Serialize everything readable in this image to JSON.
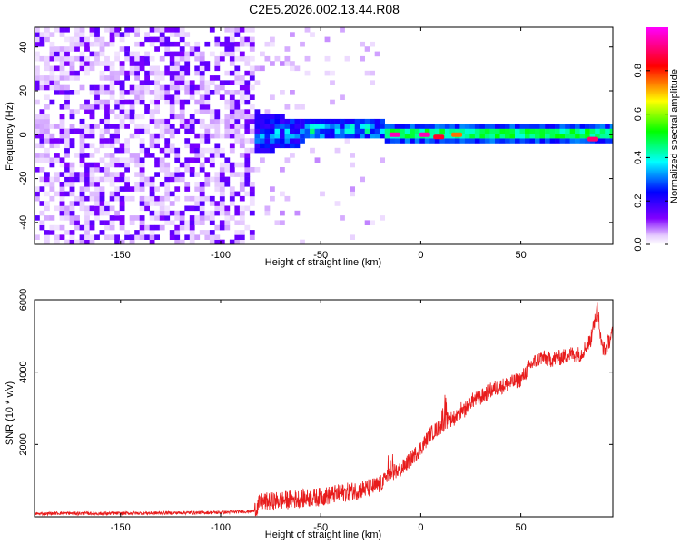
{
  "title": "C2E5.2026.002.13.44.R08",
  "colors": {
    "snr_line": "#e81c1c",
    "background": "#ffffff",
    "axis": "#000000"
  },
  "chart_data": [
    {
      "type": "heatmap",
      "name": "spectrogram",
      "xlabel": "Height of straight line (km)",
      "ylabel": "Frequency (Hz)",
      "xlim": [
        -193,
        96
      ],
      "ylim": [
        -50,
        49
      ],
      "xticks": [
        -150,
        -100,
        -50,
        0,
        50
      ],
      "yticks": [
        -40,
        -20,
        0,
        20,
        40
      ],
      "grid": false,
      "colorbar": {
        "label": "Normalized spectral amplitude",
        "range": [
          0.0,
          1.0
        ],
        "ticks": [
          0.0,
          0.2,
          0.4,
          0.6,
          0.8
        ],
        "colormap": [
          "#ffffff",
          "#e6ccff",
          "#8000ff",
          "#0000ff",
          "#00ffff",
          "#00ff00",
          "#ffff00",
          "#ff0000",
          "#ff00ff"
        ]
      },
      "regions": [
        {
          "x_range": [
            -193,
            -85
          ],
          "freq_range": [
            -50,
            49
          ],
          "description": "broadband noise",
          "amplitude": 0.1
        },
        {
          "x_range": [
            -85,
            -60
          ],
          "freq_range": [
            -10,
            10
          ],
          "center_hz": 0,
          "amplitude": 0.3
        },
        {
          "x_range": [
            -60,
            -20
          ],
          "freq_range": [
            -5,
            5
          ],
          "center_hz": 1,
          "amplitude": 0.45
        },
        {
          "x_range": [
            -20,
            96
          ],
          "freq_range": [
            -2,
            2
          ],
          "center_hz": 0,
          "amplitude": 0.5
        }
      ],
      "peaks": [
        {
          "x": -13,
          "freq": 0,
          "amplitude": 0.95
        },
        {
          "x": 2,
          "freq": 0,
          "amplitude": 0.95
        },
        {
          "x": 9,
          "freq": -1,
          "amplitude": 0.85
        },
        {
          "x": 18,
          "freq": 0,
          "amplitude": 0.75
        },
        {
          "x": 86,
          "freq": -2,
          "amplitude": 0.9
        }
      ]
    },
    {
      "type": "line",
      "name": "snr",
      "xlabel": "Height of straight line (km)",
      "ylabel": "SNR (10 * v/v)",
      "xlim": [
        -193,
        96
      ],
      "ylim": [
        0,
        6000
      ],
      "xticks": [
        -150,
        -100,
        -50,
        0,
        50
      ],
      "yticks": [
        2000,
        4000,
        6000
      ],
      "grid": false,
      "series": [
        {
          "name": "SNR",
          "x": [
            -193,
            -180,
            -160,
            -140,
            -120,
            -100,
            -90,
            -83,
            -80,
            -70,
            -60,
            -50,
            -40,
            -30,
            -25,
            -20,
            -15,
            -10,
            -5,
            0,
            5,
            10,
            15,
            20,
            25,
            30,
            35,
            40,
            45,
            50,
            55,
            60,
            65,
            70,
            75,
            80,
            85,
            88,
            90,
            92,
            96
          ],
          "y": [
            80,
            100,
            90,
            100,
            110,
            120,
            140,
            160,
            400,
            450,
            500,
            550,
            650,
            750,
            800,
            900,
            1200,
            1300,
            1600,
            1900,
            2300,
            2500,
            2700,
            2800,
            3200,
            3300,
            3500,
            3600,
            3700,
            3800,
            4200,
            4400,
            4350,
            4400,
            4500,
            4500,
            4900,
            5700,
            4800,
            4600,
            5100
          ]
        }
      ],
      "spikes": [
        {
          "x": -15,
          "y": 2500
        },
        {
          "x": 12,
          "y": 3600
        },
        {
          "x": 20,
          "y": 3200
        },
        {
          "x": 88,
          "y": 6000
        }
      ]
    }
  ]
}
